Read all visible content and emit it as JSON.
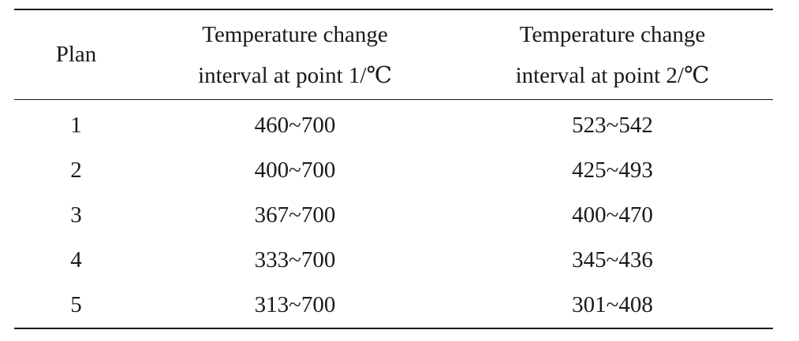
{
  "table": {
    "headers": {
      "plan": "Plan",
      "point1_line1": "Temperature change",
      "point1_line2": "interval at point 1/℃",
      "point2_line1": "Temperature change",
      "point2_line2": "interval at point 2/℃"
    },
    "rows": [
      {
        "plan": "1",
        "point1": "460~700",
        "point2": "523~542"
      },
      {
        "plan": "2",
        "point1": "400~700",
        "point2": "425~493"
      },
      {
        "plan": "3",
        "point1": "367~700",
        "point2": "400~470"
      },
      {
        "plan": "4",
        "point1": "333~700",
        "point2": "345~436"
      },
      {
        "plan": "5",
        "point1": "313~700",
        "point2": "301~408"
      }
    ]
  }
}
